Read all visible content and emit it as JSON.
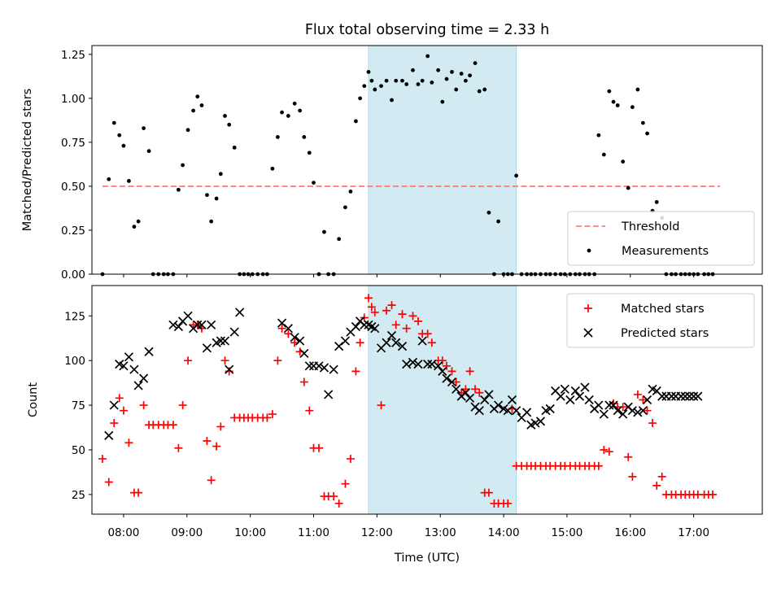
{
  "title": "Flux total observing time = 2.33 h",
  "colors": {
    "threshold": "#ff7f7f",
    "measurement": "#000000",
    "matched": "#ff0000",
    "predicted": "#000000",
    "highlight": "#add8e6"
  },
  "chart_data": [
    {
      "type": "scatter",
      "ylabel": "Matched/Predicted stars",
      "xlabel": "",
      "ylim": [
        0,
        1.3
      ],
      "xlim": [
        "07:30",
        "18:05"
      ],
      "yticks": [
        "0.00",
        "0.25",
        "0.50",
        "0.75",
        "1.00",
        "1.25"
      ],
      "highlight_span": [
        "11:52",
        "14:12"
      ],
      "threshold": 0.5,
      "legend": {
        "position": "lower-right",
        "entries": [
          "Threshold",
          "Measurements"
        ]
      },
      "series": [
        {
          "name": "Threshold",
          "kind": "hline",
          "x": [
            "07:40",
            "17:25"
          ],
          "y": [
            0.5,
            0.5
          ]
        },
        {
          "name": "Measurements",
          "kind": "dot",
          "x": [
            "07:40",
            "07:46",
            "07:51",
            "07:56",
            "08:00",
            "08:05",
            "08:10",
            "08:14",
            "08:19",
            "08:24",
            "08:28",
            "08:33",
            "08:38",
            "08:42",
            "08:47",
            "08:52",
            "08:56",
            "09:01",
            "09:06",
            "09:10",
            "09:14",
            "09:19",
            "09:23",
            "09:28",
            "09:32",
            "09:36",
            "09:40",
            "09:45",
            "09:50",
            "09:54",
            "09:58",
            "10:02",
            "10:07",
            "10:12",
            "10:16",
            "10:21",
            "10:26",
            "10:30",
            "10:36",
            "10:42",
            "10:47",
            "10:51",
            "10:56",
            "11:00",
            "11:05",
            "11:10",
            "11:14",
            "11:19",
            "11:24",
            "11:30",
            "11:35",
            "11:40",
            "11:44",
            "11:48",
            "11:52",
            "11:55",
            "11:58",
            "12:04",
            "12:09",
            "12:14",
            "12:18",
            "12:24",
            "12:28",
            "12:34",
            "12:39",
            "12:43",
            "12:48",
            "12:52",
            "12:58",
            "13:02",
            "13:06",
            "13:11",
            "13:15",
            "13:20",
            "13:24",
            "13:28",
            "13:33",
            "13:37",
            "13:42",
            "13:46",
            "13:51",
            "13:55",
            "14:00",
            "14:04",
            "14:08",
            "14:12",
            "14:17",
            "14:22",
            "14:26",
            "14:30",
            "14:35",
            "14:40",
            "14:44",
            "14:49",
            "14:54",
            "14:58",
            "15:03",
            "15:08",
            "15:12",
            "15:17",
            "15:21",
            "15:26",
            "15:30",
            "15:35",
            "15:40",
            "15:44",
            "15:48",
            "15:53",
            "15:58",
            "16:02",
            "16:07",
            "16:12",
            "16:16",
            "16:21",
            "16:25",
            "16:30",
            "16:34",
            "16:39",
            "16:43",
            "16:48",
            "16:52",
            "16:56",
            "17:00",
            "17:04",
            "17:10",
            "17:14",
            "17:18"
          ],
          "y": [
            0.0,
            0.54,
            0.86,
            0.79,
            0.73,
            0.53,
            0.27,
            0.3,
            0.83,
            0.7,
            0.0,
            0.0,
            0.0,
            0.0,
            0.0,
            0.48,
            0.62,
            0.82,
            0.93,
            1.01,
            0.96,
            0.45,
            0.3,
            0.43,
            0.57,
            0.9,
            0.85,
            0.72,
            0.0,
            0.0,
            0.0,
            0.0,
            0.0,
            0.0,
            0.0,
            0.6,
            0.78,
            0.92,
            0.9,
            0.97,
            0.93,
            0.78,
            0.69,
            0.52,
            0.0,
            0.24,
            0.0,
            0.0,
            0.2,
            0.38,
            0.47,
            0.87,
            1.0,
            1.07,
            1.15,
            1.1,
            1.05,
            1.07,
            1.1,
            0.99,
            1.1,
            1.1,
            1.08,
            1.16,
            1.08,
            1.1,
            1.24,
            1.09,
            1.16,
            0.98,
            1.11,
            1.15,
            1.05,
            1.14,
            1.1,
            1.13,
            1.2,
            1.04,
            1.05,
            0.35,
            0.0,
            0.3,
            0.0,
            0.0,
            0.0,
            0.56,
            0.0,
            0.0,
            0.0,
            0.0,
            0.0,
            0.0,
            0.0,
            0.0,
            0.0,
            0.0,
            0.0,
            0.0,
            0.0,
            0.0,
            0.0,
            0.0,
            0.79,
            0.68,
            1.04,
            0.98,
            0.96,
            0.64,
            0.49,
            0.95,
            1.05,
            0.86,
            0.8,
            0.36,
            0.41,
            0.32,
            0.0,
            0.0,
            0.0,
            0.0,
            0.0,
            0.0,
            0.0,
            0.0,
            0.0,
            0.0,
            0.0
          ],
          "note": ""
        }
      ]
    },
    {
      "type": "scatter",
      "ylabel": "Count",
      "xlabel": "Time (UTC)",
      "ylim": [
        14,
        142
      ],
      "xlim": [
        "07:30",
        "18:05"
      ],
      "yticks": [
        "25",
        "50",
        "75",
        "100",
        "125"
      ],
      "xticks": [
        "08:00",
        "09:00",
        "10:00",
        "11:00",
        "12:00",
        "13:00",
        "14:00",
        "15:00",
        "16:00",
        "17:00"
      ],
      "highlight_span": [
        "11:52",
        "14:12"
      ],
      "legend": {
        "position": "top-right",
        "entries": [
          "Matched stars",
          "Predicted stars"
        ]
      },
      "series": [
        {
          "name": "Matched stars",
          "kind": "plus",
          "x": [
            "07:40",
            "07:46",
            "07:51",
            "07:56",
            "08:00",
            "08:05",
            "08:10",
            "08:14",
            "08:19",
            "08:24",
            "08:28",
            "08:33",
            "08:38",
            "08:42",
            "08:47",
            "08:52",
            "08:56",
            "09:01",
            "09:06",
            "09:10",
            "09:14",
            "09:19",
            "09:23",
            "09:28",
            "09:32",
            "09:36",
            "09:40",
            "09:45",
            "09:50",
            "09:54",
            "09:58",
            "10:02",
            "10:07",
            "10:12",
            "10:16",
            "10:21",
            "10:26",
            "10:30",
            "10:36",
            "10:42",
            "10:47",
            "10:51",
            "10:56",
            "11:00",
            "11:05",
            "11:10",
            "11:14",
            "11:19",
            "11:24",
            "11:30",
            "11:35",
            "11:40",
            "11:44",
            "11:48",
            "11:52",
            "11:55",
            "11:58",
            "12:04",
            "12:09",
            "12:14",
            "12:18",
            "12:24",
            "12:28",
            "12:34",
            "12:39",
            "12:43",
            "12:48",
            "12:52",
            "12:58",
            "13:02",
            "13:06",
            "13:11",
            "13:15",
            "13:20",
            "13:24",
            "13:28",
            "13:33",
            "13:37",
            "13:42",
            "13:46",
            "13:51",
            "13:55",
            "14:00",
            "14:04",
            "14:08",
            "14:12",
            "14:17",
            "14:22",
            "14:26",
            "14:30",
            "14:35",
            "14:40",
            "14:44",
            "14:49",
            "14:54",
            "14:58",
            "15:03",
            "15:08",
            "15:12",
            "15:17",
            "15:21",
            "15:26",
            "15:30",
            "15:35",
            "15:40",
            "15:44",
            "15:48",
            "15:53",
            "15:58",
            "16:02",
            "16:07",
            "16:12",
            "16:16",
            "16:21",
            "16:25",
            "16:30",
            "16:34",
            "16:39",
            "16:43",
            "16:48",
            "16:52",
            "16:56",
            "17:00",
            "17:04",
            "17:10",
            "17:14",
            "17:18"
          ],
          "y": [
            45,
            32,
            65,
            79,
            72,
            54,
            26,
            26,
            75,
            64,
            64,
            64,
            64,
            64,
            64,
            51,
            75,
            100,
            120,
            120,
            118,
            55,
            33,
            52,
            63,
            100,
            94,
            68,
            68,
            68,
            68,
            68,
            68,
            68,
            68,
            70,
            100,
            118,
            115,
            110,
            105,
            88,
            72,
            51,
            51,
            24,
            24,
            24,
            20,
            31,
            45,
            94,
            110,
            124,
            135,
            130,
            127,
            75,
            128,
            131,
            120,
            126,
            118,
            125,
            122,
            115,
            115,
            110,
            100,
            100,
            97,
            94,
            88,
            82,
            84,
            94,
            84,
            82,
            26,
            26,
            20,
            20,
            20,
            20,
            73,
            41,
            41,
            41,
            41,
            41,
            41,
            41,
            41,
            41,
            41,
            41,
            41,
            41,
            41,
            41,
            41,
            41,
            41,
            50,
            49,
            76,
            74,
            74,
            46,
            35,
            81,
            78,
            72,
            65,
            30,
            35,
            25,
            25,
            25,
            25,
            25,
            25,
            25,
            25,
            25,
            25,
            25
          ]
        },
        {
          "name": "Predicted stars",
          "kind": "cross",
          "x": [
            "07:46",
            "07:51",
            "07:56",
            "08:00",
            "08:05",
            "08:10",
            "08:14",
            "08:19",
            "08:24",
            "08:47",
            "08:52",
            "08:56",
            "09:01",
            "09:06",
            "09:10",
            "09:14",
            "09:19",
            "09:23",
            "09:28",
            "09:32",
            "09:36",
            "09:40",
            "09:45",
            "09:50",
            "10:30",
            "10:36",
            "10:42",
            "10:47",
            "10:51",
            "10:56",
            "11:00",
            "11:05",
            "11:10",
            "11:14",
            "11:19",
            "11:24",
            "11:30",
            "11:35",
            "11:40",
            "11:44",
            "11:48",
            "11:52",
            "11:55",
            "11:58",
            "12:04",
            "12:09",
            "12:14",
            "12:18",
            "12:24",
            "12:28",
            "12:34",
            "12:39",
            "12:43",
            "12:48",
            "12:52",
            "12:58",
            "13:02",
            "13:06",
            "13:11",
            "13:15",
            "13:20",
            "13:24",
            "13:28",
            "13:33",
            "13:37",
            "13:42",
            "13:46",
            "13:51",
            "13:55",
            "14:00",
            "14:04",
            "14:08",
            "14:12",
            "14:17",
            "14:22",
            "14:26",
            "14:30",
            "14:35",
            "14:40",
            "14:44",
            "14:49",
            "14:54",
            "14:58",
            "15:03",
            "15:08",
            "15:12",
            "15:17",
            "15:21",
            "15:26",
            "15:30",
            "15:35",
            "15:40",
            "15:44",
            "15:48",
            "15:53",
            "15:58",
            "16:02",
            "16:07",
            "16:12",
            "16:16",
            "16:21",
            "16:25",
            "16:30",
            "16:34",
            "16:39",
            "16:43",
            "16:48",
            "16:52",
            "16:56",
            "17:00",
            "17:04"
          ],
          "y": [
            58,
            75,
            98,
            97,
            102,
            95,
            86,
            90,
            105,
            120,
            119,
            122,
            125,
            118,
            120,
            120,
            107,
            120,
            110,
            111,
            111,
            95,
            116,
            127,
            121,
            118,
            113,
            111,
            104,
            97,
            97,
            97,
            96,
            81,
            95,
            108,
            111,
            116,
            119,
            122,
            120,
            120,
            119,
            118,
            107,
            110,
            114,
            110,
            108,
            98,
            99,
            98,
            111,
            98,
            98,
            97,
            94,
            90,
            88,
            84,
            80,
            82,
            79,
            74,
            72,
            78,
            81,
            73,
            75,
            73,
            72,
            78,
            72,
            68,
            71,
            64,
            65,
            66,
            72,
            73,
            83,
            80,
            84,
            78,
            83,
            80,
            85,
            78,
            73,
            75,
            70,
            75,
            75,
            72,
            70,
            74,
            72,
            71,
            72,
            78,
            84,
            83,
            80,
            80,
            80,
            80,
            80,
            80,
            80,
            80,
            80
          ]
        }
      ]
    }
  ]
}
